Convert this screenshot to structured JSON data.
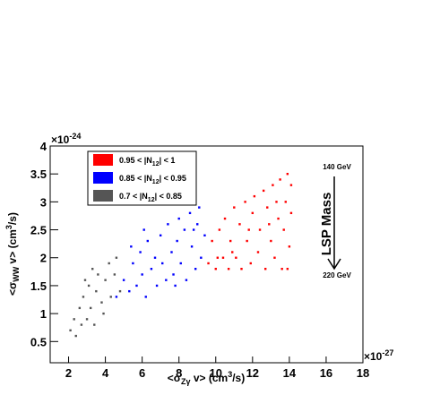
{
  "chart_data": {
    "type": "scatter",
    "x_label": [
      "<σ",
      "Zγ",
      " v> (cm",
      "3",
      "/s)"
    ],
    "y_label": [
      "<σ",
      "WW",
      " v> (cm",
      "3",
      "/s)"
    ],
    "x_exponent": [
      "×10",
      "-27"
    ],
    "y_exponent": [
      "×10",
      "-24"
    ],
    "annotations": {
      "top": "140 GeV",
      "middle": "LSP Mass",
      "bottom": "220 GeV"
    },
    "xlim": [
      1,
      18
    ],
    "ylim": [
      0.12,
      4
    ],
    "xticks": [
      2,
      4,
      6,
      8,
      10,
      12,
      14,
      16,
      18
    ],
    "yticks": [
      0.5,
      1,
      1.5,
      2,
      2.5,
      3,
      3.5,
      4
    ],
    "series": [
      {
        "name": [
          "0.95 < |N",
          "12",
          "| < 1"
        ],
        "color": "#ff0000",
        "x": [
          9.6,
          9.8,
          10.0,
          10.2,
          10.4,
          10.5,
          10.7,
          10.8,
          11.0,
          11.1,
          11.3,
          11.4,
          11.6,
          11.7,
          11.9,
          12.0,
          12.1,
          12.3,
          12.4,
          12.6,
          12.7,
          12.8,
          13.0,
          13.1,
          13.2,
          13.4,
          13.5,
          13.6,
          13.7,
          13.8,
          13.9,
          14.0,
          14.1,
          14.1,
          13.9,
          13.3,
          12.9,
          11.8,
          10.9,
          10.1
        ],
        "values": [
          1.9,
          2.3,
          1.8,
          2.5,
          2.0,
          2.7,
          1.8,
          2.3,
          2.9,
          2.0,
          2.6,
          1.8,
          3.0,
          2.3,
          1.9,
          2.8,
          3.1,
          2.1,
          2.5,
          3.2,
          1.8,
          2.9,
          2.3,
          3.3,
          2.0,
          2.7,
          3.4,
          1.8,
          2.5,
          3.0,
          3.5,
          2.2,
          2.8,
          3.3,
          1.8,
          3.0,
          2.6,
          2.5,
          2.1,
          2.0
        ]
      },
      {
        "name": [
          "0.85 < |N",
          "12",
          "| < 0.95"
        ],
        "color": "#0000ff",
        "x": [
          4.6,
          5.0,
          5.3,
          5.5,
          5.7,
          5.9,
          6.0,
          6.2,
          6.3,
          6.5,
          6.7,
          6.8,
          7.0,
          7.1,
          7.3,
          7.4,
          7.6,
          7.7,
          7.9,
          8.0,
          8.1,
          8.3,
          8.4,
          8.6,
          8.7,
          8.9,
          9.0,
          9.1,
          9.2,
          9.4,
          6.1,
          5.4,
          7.8,
          8.8
        ],
        "values": [
          1.3,
          1.6,
          1.4,
          1.9,
          1.5,
          2.1,
          1.7,
          1.3,
          2.3,
          1.8,
          2.0,
          1.5,
          2.4,
          1.9,
          1.6,
          2.6,
          2.1,
          1.7,
          2.3,
          2.7,
          1.9,
          2.5,
          1.6,
          2.8,
          2.2,
          1.8,
          2.6,
          2.9,
          2.0,
          2.4,
          2.5,
          2.2,
          1.5,
          2.5
        ]
      },
      {
        "name": [
          "0.7 < |N",
          "12",
          "| < 0.85"
        ],
        "color": "#555555",
        "x": [
          2.1,
          2.3,
          2.4,
          2.6,
          2.7,
          2.8,
          3.0,
          3.1,
          3.2,
          3.4,
          3.5,
          3.6,
          3.8,
          3.9,
          4.0,
          4.2,
          4.3,
          4.5,
          4.6,
          4.8,
          2.9,
          3.3
        ],
        "values": [
          0.7,
          0.9,
          0.6,
          1.1,
          0.8,
          1.3,
          0.9,
          1.5,
          1.1,
          0.8,
          1.4,
          1.7,
          1.2,
          1.0,
          1.6,
          1.9,
          1.3,
          1.7,
          2.0,
          1.4,
          1.6,
          1.8
        ]
      }
    ]
  }
}
